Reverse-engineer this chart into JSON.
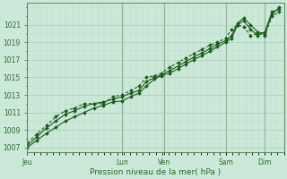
{
  "bg_color": "#cce8d8",
  "grid_color_major": "#a8ccb8",
  "grid_color_minor": "#b8d8c8",
  "line_color": "#1a5c1a",
  "marker_color": "#1a5c1a",
  "xlabel": "Pression niveau de la mer( hPa )",
  "ylim": [
    1006.5,
    1023.5
  ],
  "yticks": [
    1007,
    1009,
    1011,
    1013,
    1015,
    1017,
    1019,
    1021
  ],
  "day_labels": [
    "Jeu",
    "Lun",
    "Ven",
    "Sam",
    "Dim"
  ],
  "day_positions": [
    0,
    0.4,
    0.575,
    0.835,
    1.0
  ],
  "xlim": [
    0.0,
    1.08
  ],
  "series1_x": [
    0.0,
    0.04,
    0.08,
    0.12,
    0.16,
    0.2,
    0.24,
    0.28,
    0.32,
    0.36,
    0.4,
    0.435,
    0.47,
    0.5,
    0.535,
    0.565,
    0.6,
    0.635,
    0.665,
    0.7,
    0.735,
    0.77,
    0.8,
    0.835,
    0.86,
    0.885,
    0.91,
    0.94,
    0.97,
    1.0,
    1.03,
    1.06
  ],
  "series1_y": [
    1007.0,
    1007.8,
    1008.6,
    1009.3,
    1010.0,
    1010.5,
    1011.0,
    1011.5,
    1011.8,
    1012.2,
    1012.3,
    1012.8,
    1013.2,
    1014.0,
    1014.8,
    1015.2,
    1015.5,
    1016.0,
    1016.5,
    1017.0,
    1017.5,
    1018.0,
    1018.5,
    1019.0,
    1019.5,
    1021.0,
    1021.5,
    1020.5,
    1019.8,
    1020.2,
    1022.5,
    1022.8
  ],
  "series2_x": [
    0.0,
    0.04,
    0.08,
    0.12,
    0.16,
    0.2,
    0.24,
    0.28,
    0.32,
    0.36,
    0.4,
    0.435,
    0.47,
    0.5,
    0.535,
    0.565,
    0.6,
    0.635,
    0.665,
    0.7,
    0.735,
    0.77,
    0.8,
    0.835,
    0.86,
    0.885,
    0.91,
    0.94,
    0.97,
    1.0,
    1.03,
    1.06
  ],
  "series2_y": [
    1007.2,
    1008.2,
    1009.2,
    1010.0,
    1010.8,
    1011.2,
    1011.7,
    1012.0,
    1012.2,
    1012.5,
    1012.8,
    1013.2,
    1013.5,
    1014.5,
    1015.0,
    1015.3,
    1015.8,
    1016.3,
    1016.8,
    1017.3,
    1017.8,
    1018.3,
    1018.8,
    1019.2,
    1019.8,
    1021.2,
    1021.8,
    1021.0,
    1020.2,
    1020.0,
    1022.2,
    1023.0
  ],
  "series3_x": [
    0.0,
    0.04,
    0.08,
    0.12,
    0.16,
    0.2,
    0.24,
    0.28,
    0.32,
    0.36,
    0.4,
    0.435,
    0.47,
    0.5,
    0.535,
    0.565,
    0.6,
    0.635,
    0.665,
    0.7,
    0.735,
    0.77,
    0.8,
    0.835,
    0.86,
    0.885,
    0.91,
    0.94,
    0.97,
    1.0,
    1.03,
    1.06
  ],
  "series3_y": [
    1007.5,
    1008.5,
    1009.5,
    1010.5,
    1011.2,
    1011.5,
    1012.0,
    1012.0,
    1012.0,
    1012.8,
    1013.0,
    1013.5,
    1014.0,
    1015.0,
    1015.2,
    1015.5,
    1016.2,
    1016.7,
    1017.2,
    1017.7,
    1018.2,
    1018.7,
    1019.0,
    1019.5,
    1020.5,
    1021.0,
    1020.8,
    1019.8,
    1020.0,
    1019.8,
    1022.0,
    1022.5
  ],
  "vline_color": "#4a7a4a",
  "spine_color": "#5a8a5a",
  "font_color": "#2a6a2a",
  "font_size_tick": 5.5,
  "font_size_label": 6.5
}
